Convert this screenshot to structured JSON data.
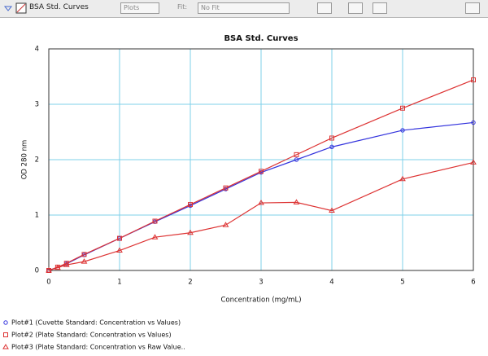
{
  "toolbar": {
    "window_name": "BSA Std. Curves",
    "plots_button": "Plots",
    "fit_label": "Fit:",
    "fit_value": "No Fit"
  },
  "chart_data": {
    "type": "line",
    "title": "BSA Std. Curves",
    "x_label": "Concentration (mg/mL)",
    "y_label": "OD 280 nm",
    "xlim": [
      0,
      6
    ],
    "ylim": [
      0,
      4
    ],
    "xticks": [
      0,
      1,
      2,
      3,
      4,
      5,
      6
    ],
    "yticks": [
      0,
      1,
      2,
      3,
      4
    ],
    "grid": true,
    "series": [
      {
        "name": "Plot#1 (Cuvette Standard: Concentration vs Values)",
        "color": "#3333dd",
        "marker": "circle",
        "x": [
          0,
          0.25,
          0.5,
          1,
          1.5,
          2,
          2.5,
          3,
          3.5,
          4,
          5,
          6
        ],
        "values": [
          0,
          0.12,
          0.28,
          0.58,
          0.88,
          1.17,
          1.47,
          1.77,
          2.0,
          2.23,
          2.53,
          2.67
        ]
      },
      {
        "name": "Plot#2 (Plate Standard: Concentration vs Values)",
        "color": "#dd3333",
        "marker": "square",
        "x": [
          0,
          0.125,
          0.25,
          0.5,
          1,
          1.5,
          2,
          2.5,
          3,
          3.5,
          4,
          5,
          6
        ],
        "values": [
          0,
          0.06,
          0.13,
          0.29,
          0.58,
          0.89,
          1.19,
          1.49,
          1.79,
          2.09,
          2.39,
          2.93,
          3.44
        ]
      },
      {
        "name": "Plot#3 (Plate Standard: Concentration vs Raw Value..",
        "color": "#dd3333",
        "marker": "triangle",
        "x": [
          0,
          0.125,
          0.25,
          0.5,
          1,
          1.5,
          2,
          2.5,
          3,
          3.5,
          4,
          5,
          6
        ],
        "values": [
          0,
          0.05,
          0.1,
          0.16,
          0.36,
          0.6,
          0.68,
          0.82,
          1.22,
          1.23,
          1.08,
          1.65,
          1.95
        ]
      }
    ]
  }
}
